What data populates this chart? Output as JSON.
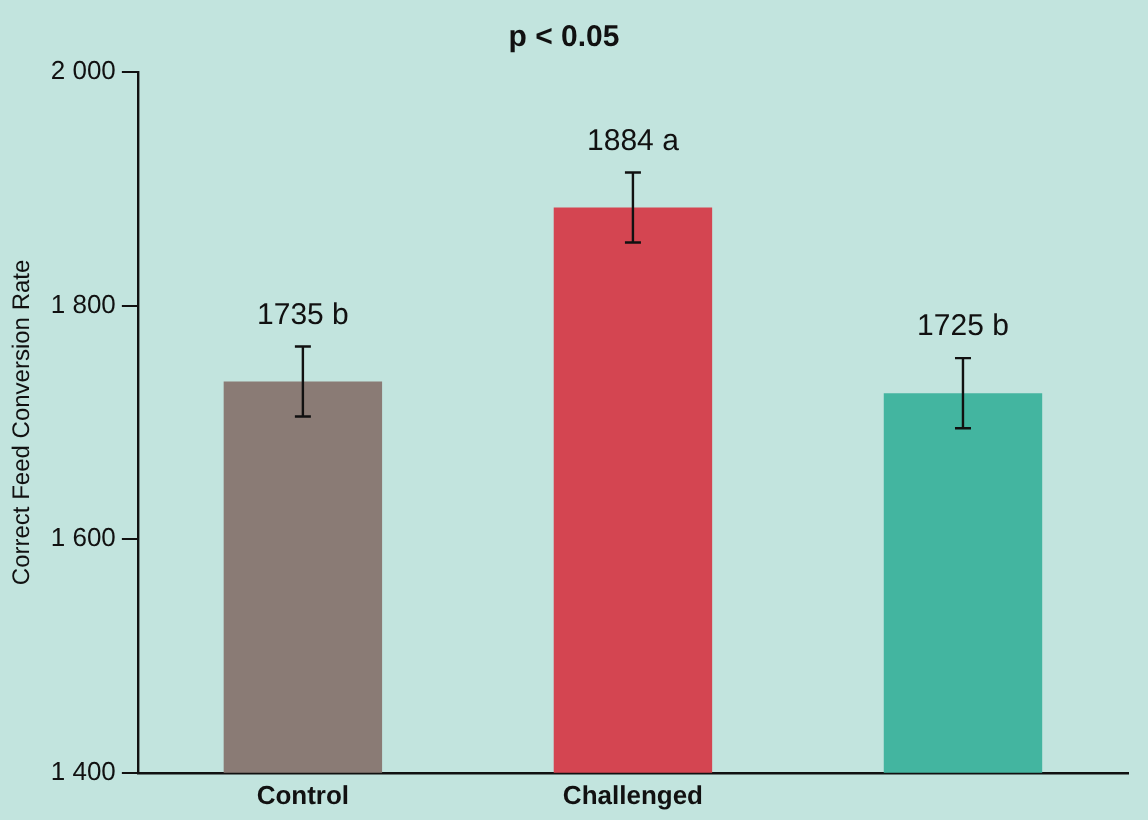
{
  "chart_data": {
    "type": "bar",
    "title": "p < 0.05",
    "ylabel": "Correct Feed Conversion Rate",
    "categories": [
      "Control",
      "Challenged",
      null
    ],
    "values": [
      1735,
      1884,
      1725
    ],
    "colors": [
      "#8a7b75",
      "#d44551",
      "#43b5a0"
    ],
    "errors": [
      30,
      30,
      30
    ],
    "value_labels": [
      "1735 b",
      "1884 a",
      "1725 b"
    ],
    "ylim": [
      1400,
      2000
    ],
    "yticks": [
      {
        "value": 1400,
        "label": "1 400"
      },
      {
        "value": 1600,
        "label": "1 600"
      },
      {
        "value": 1800,
        "label": "1 800"
      },
      {
        "value": 2000,
        "label": "2 000"
      }
    ],
    "grid": false,
    "legend": false
  }
}
